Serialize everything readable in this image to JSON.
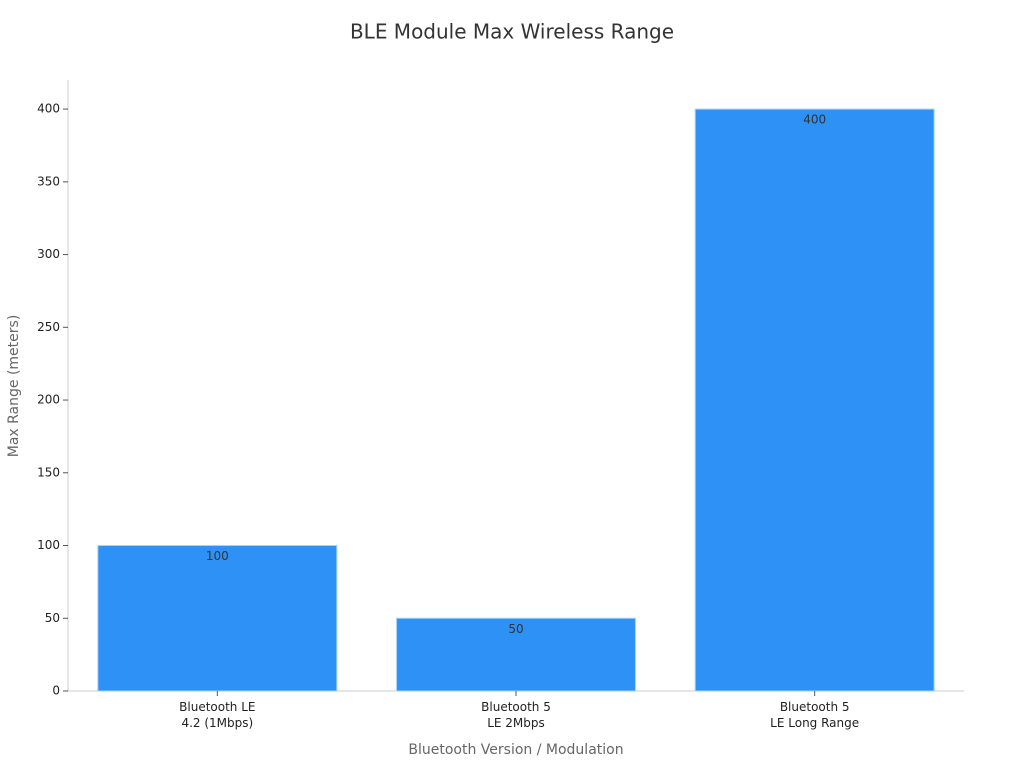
{
  "chart_data": {
    "type": "bar",
    "title": "BLE Module Max Wireless Range",
    "x_label": "Bluetooth Version / Modulation",
    "y_label": "Max Range (meters)",
    "categories": [
      "Bluetooth LE\n4.2 (1Mbps)",
      "Bluetooth 5\nLE 2Mbps",
      "Bluetooth 5\nLE Long Range"
    ],
    "values": [
      100,
      50,
      400
    ],
    "color": "#2e91f5",
    "ylim": [
      0,
      420
    ],
    "yticks": [
      0,
      50,
      100,
      150,
      200,
      250,
      300,
      350,
      400
    ],
    "grid": false
  }
}
